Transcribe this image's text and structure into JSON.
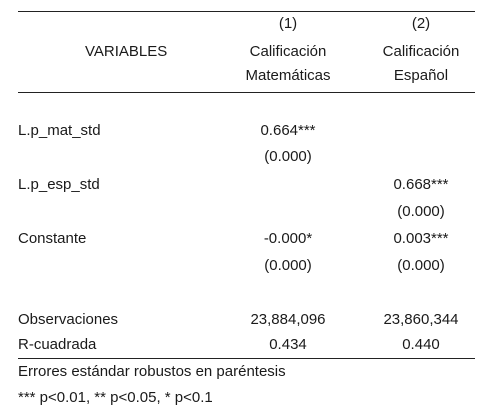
{
  "header": {
    "variables_label": "VARIABLES",
    "col1": {
      "number": "(1)",
      "line1": "Calificación",
      "line2": "Matemáticas"
    },
    "col2": {
      "number": "(2)",
      "line1": "Calificación",
      "line2": "Español"
    }
  },
  "rows": [
    {
      "label": "L.p_mat_std",
      "col1_coef": "0.664***",
      "col1_p": "(0.000)",
      "col2_coef": "",
      "col2_p": ""
    },
    {
      "label": "L.p_esp_std",
      "col1_coef": "",
      "col1_p": "",
      "col2_coef": "0.668***",
      "col2_p": "(0.000)"
    },
    {
      "label": "Constante",
      "col1_coef": "-0.000*",
      "col1_p": "(0.000)",
      "col2_coef": "0.003***",
      "col2_p": "(0.000)"
    }
  ],
  "stats": [
    {
      "label": "Observaciones",
      "col1": "23,884,096",
      "col2": "23,860,344"
    },
    {
      "label": "R-cuadrada",
      "col1": "0.434",
      "col2": "0.440"
    }
  ],
  "notes": [
    "Errores estándar robustos en paréntesis",
    "*** p<0.01, ** p<0.05, * p<0.1"
  ]
}
